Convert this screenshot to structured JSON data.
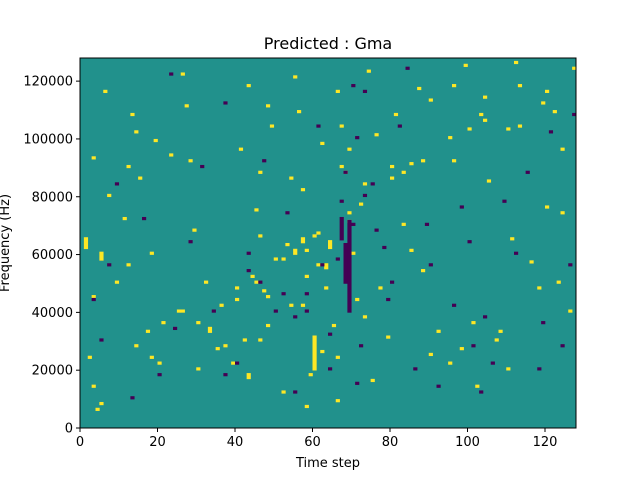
{
  "chart_data": {
    "type": "heatmap",
    "title": "Predicted : Gma",
    "xlabel": "Time step",
    "ylabel": "Frequency (Hz)",
    "xlim": [
      0,
      128
    ],
    "ylim": [
      0,
      128000
    ],
    "xticks": [
      "0",
      "20",
      "40",
      "60",
      "80",
      "100",
      "120"
    ],
    "yticks": [
      "0",
      "20000",
      "40000",
      "60000",
      "80000",
      "100000",
      "120000"
    ],
    "grid": false,
    "legend": "none",
    "colormap": "viridis",
    "colors": {
      "background": "#21918c",
      "high": "#fde725",
      "low": "#440154"
    },
    "n_time_steps": 128,
    "n_freq_bins": 128,
    "rows_yellow": [
      [
        5,
        58,
        3
      ],
      [
        17,
        33,
        1
      ],
      [
        26,
        40,
        1
      ],
      [
        40,
        44,
        1
      ],
      [
        55,
        60,
        2
      ],
      [
        69,
        71,
        1
      ],
      [
        80,
        86,
        1
      ],
      [
        104,
        106,
        1
      ],
      [
        113,
        118,
        1
      ],
      [
        2,
        24,
        1
      ],
      [
        3,
        14,
        1
      ],
      [
        14,
        28,
        1
      ],
      [
        32,
        50,
        1
      ],
      [
        44,
        52,
        1
      ],
      [
        57,
        64,
        2
      ],
      [
        80,
        90,
        1
      ],
      [
        112,
        126,
        1
      ],
      [
        5,
        8,
        1
      ],
      [
        18,
        24,
        1
      ],
      [
        30,
        36,
        1
      ],
      [
        40,
        48,
        1
      ],
      [
        52,
        58,
        1
      ],
      [
        60,
        66,
        1
      ],
      [
        72,
        77,
        1
      ],
      [
        83,
        88,
        1
      ],
      [
        95,
        100,
        1
      ],
      [
        4,
        6,
        1
      ],
      [
        20,
        22,
        1
      ],
      [
        36,
        42,
        1
      ],
      [
        45,
        50,
        1
      ],
      [
        58,
        61,
        1
      ],
      [
        69,
        74,
        1
      ],
      [
        88,
        92,
        1
      ],
      [
        100,
        103,
        1
      ],
      [
        1,
        62,
        4
      ],
      [
        3,
        45,
        1
      ],
      [
        12,
        56,
        1
      ],
      [
        25,
        40,
        1
      ],
      [
        37,
        28,
        1
      ],
      [
        42,
        30,
        1
      ],
      [
        47,
        47,
        1
      ],
      [
        63,
        55,
        2
      ],
      [
        77,
        48,
        1
      ],
      [
        85,
        61,
        1
      ],
      [
        92,
        33,
        1
      ],
      [
        101,
        36,
        1
      ],
      [
        111,
        65,
        1
      ],
      [
        123,
        50,
        1
      ],
      [
        126,
        40,
        1
      ],
      [
        60,
        20,
        12
      ],
      [
        46,
        30,
        1
      ],
      [
        54,
        42,
        1
      ],
      [
        59,
        18,
        1
      ],
      [
        62,
        26,
        1
      ],
      [
        64,
        62,
        3
      ],
      [
        71,
        44,
        1
      ],
      [
        83,
        70,
        1
      ],
      [
        95,
        22,
        1
      ],
      [
        11,
        72,
        1
      ],
      [
        18,
        60,
        1
      ],
      [
        29,
        68,
        1
      ],
      [
        35,
        27,
        1
      ],
      [
        43,
        17,
        2
      ],
      [
        48,
        35,
        1
      ],
      [
        52,
        12,
        1
      ],
      [
        66,
        24,
        1
      ],
      [
        73,
        38,
        1
      ],
      [
        98,
        27,
        1
      ],
      [
        107,
        30,
        1
      ],
      [
        116,
        57,
        1
      ],
      [
        120,
        76,
        1
      ],
      [
        7,
        80,
        1
      ],
      [
        9,
        50,
        1
      ],
      [
        30,
        20,
        1
      ],
      [
        45,
        75,
        1
      ],
      [
        57,
        82,
        1
      ],
      [
        67,
        90,
        1
      ],
      [
        75,
        16,
        1
      ],
      [
        88,
        54,
        1
      ],
      [
        102,
        14,
        1
      ],
      [
        110,
        20,
        1
      ],
      [
        124,
        96,
        1
      ],
      [
        21,
        36,
        1
      ],
      [
        33,
        33,
        2
      ],
      [
        39,
        22,
        1
      ],
      [
        50,
        58,
        1
      ],
      [
        53,
        63,
        1
      ],
      [
        58,
        52,
        1
      ],
      [
        61,
        67,
        1
      ],
      [
        65,
        35,
        1
      ],
      [
        79,
        31,
        1
      ],
      [
        90,
        25,
        1
      ],
      [
        108,
        33,
        1
      ],
      [
        118,
        48,
        1
      ],
      [
        124,
        74,
        1
      ],
      [
        12,
        90,
        1
      ],
      [
        23,
        94,
        1
      ],
      [
        14,
        102,
        1
      ],
      [
        27,
        111,
        1
      ],
      [
        41,
        96,
        1
      ],
      [
        49,
        104,
        1
      ],
      [
        56,
        109,
        1
      ],
      [
        62,
        98,
        1
      ],
      [
        67,
        104,
        1
      ],
      [
        69,
        96,
        1
      ],
      [
        76,
        101,
        1
      ],
      [
        81,
        108,
        1
      ],
      [
        90,
        113,
        1
      ],
      [
        96,
        118,
        1
      ],
      [
        103,
        108,
        1
      ],
      [
        110,
        103,
        1
      ],
      [
        119,
        112,
        1
      ],
      [
        3,
        93,
        1
      ],
      [
        15,
        86,
        1
      ],
      [
        28,
        92,
        1
      ],
      [
        46,
        88,
        1
      ],
      [
        54,
        86,
        1
      ],
      [
        68,
        88,
        1
      ],
      [
        73,
        84,
        1
      ],
      [
        85,
        91,
        1
      ],
      [
        96,
        92,
        1
      ],
      [
        105,
        85,
        1
      ],
      [
        120,
        116,
        1
      ],
      [
        6,
        116,
        1
      ],
      [
        13,
        108,
        1
      ],
      [
        19,
        99,
        1
      ],
      [
        26,
        122,
        1
      ],
      [
        43,
        118,
        1
      ],
      [
        48,
        111,
        1
      ],
      [
        55,
        121,
        1
      ],
      [
        66,
        116,
        1
      ],
      [
        74,
        123,
        1
      ],
      [
        87,
        117,
        1
      ],
      [
        99,
        125,
        1
      ],
      [
        104,
        114,
        1
      ],
      [
        113,
        104,
        1
      ],
      [
        122,
        109,
        1
      ],
      [
        127,
        124,
        1
      ],
      [
        46,
        66,
        1
      ],
      [
        48,
        45,
        1
      ],
      [
        57,
        42,
        1
      ],
      [
        61,
        56,
        1
      ],
      [
        63,
        48,
        1
      ],
      [
        70,
        60,
        1
      ],
      [
        66,
        9,
        1
      ],
      [
        58,
        7,
        1
      ]
    ],
    "rows_purple": [
      [
        67,
        65,
        8
      ],
      [
        68,
        50,
        14
      ],
      [
        69,
        40,
        32
      ],
      [
        70,
        70,
        1
      ],
      [
        66,
        58,
        1
      ],
      [
        67,
        78,
        1
      ],
      [
        68,
        88,
        1
      ],
      [
        71,
        15,
        1
      ],
      [
        72,
        28,
        1
      ],
      [
        73,
        80,
        1
      ],
      [
        75,
        84,
        1
      ],
      [
        71,
        100,
        1
      ],
      [
        70,
        118,
        1
      ],
      [
        78,
        62,
        1
      ],
      [
        80,
        50,
        1
      ],
      [
        82,
        104,
        1
      ],
      [
        90,
        56,
        1
      ],
      [
        98,
        76,
        1
      ],
      [
        101,
        28,
        1
      ],
      [
        104,
        38,
        1
      ],
      [
        112,
        60,
        1
      ],
      [
        119,
        36,
        1
      ],
      [
        124,
        28,
        1
      ],
      [
        127,
        108,
        1
      ],
      [
        3,
        44,
        1
      ],
      [
        5,
        30,
        1
      ],
      [
        7,
        56,
        1
      ],
      [
        9,
        84,
        1
      ],
      [
        13,
        10,
        1
      ],
      [
        16,
        72,
        1
      ],
      [
        20,
        18,
        1
      ],
      [
        24,
        34,
        1
      ],
      [
        28,
        64,
        1
      ],
      [
        31,
        90,
        1
      ],
      [
        34,
        40,
        1
      ],
      [
        37,
        112,
        1
      ],
      [
        40,
        22,
        1
      ],
      [
        43,
        60,
        1
      ],
      [
        47,
        92,
        1
      ],
      [
        50,
        40,
        1
      ],
      [
        53,
        74,
        1
      ],
      [
        55,
        12,
        1
      ],
      [
        58,
        46,
        1
      ],
      [
        61,
        104,
        1
      ],
      [
        64,
        32,
        1
      ],
      [
        73,
        116,
        1
      ],
      [
        76,
        68,
        1
      ],
      [
        79,
        44,
        1
      ],
      [
        84,
        124,
        1
      ],
      [
        86,
        20,
        1
      ],
      [
        89,
        70,
        1
      ],
      [
        92,
        14,
        1
      ],
      [
        96,
        42,
        1
      ],
      [
        100,
        64,
        1
      ],
      [
        103,
        12,
        1
      ],
      [
        106,
        22,
        1
      ],
      [
        109,
        78,
        1
      ],
      [
        115,
        88,
        1
      ],
      [
        118,
        20,
        1
      ],
      [
        121,
        102,
        1
      ],
      [
        126,
        56,
        1
      ],
      [
        46,
        50,
        1
      ],
      [
        52,
        46,
        1
      ],
      [
        55,
        38,
        1
      ],
      [
        62,
        56,
        1
      ],
      [
        64,
        20,
        1
      ],
      [
        58,
        40,
        1
      ],
      [
        37,
        18,
        1
      ],
      [
        43,
        54,
        1
      ],
      [
        23,
        122,
        1
      ]
    ]
  }
}
